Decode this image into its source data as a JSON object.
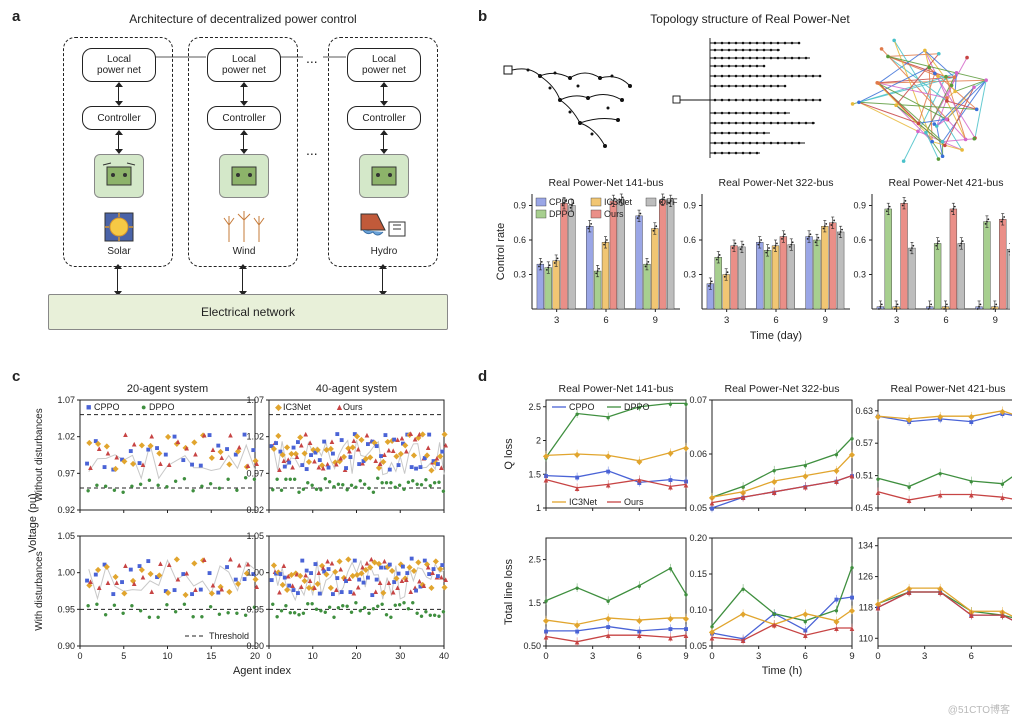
{
  "labels": {
    "a": "a",
    "b": "b",
    "c": "c",
    "d": "d"
  },
  "a": {
    "title": "Architecture of decentralized power control",
    "local_power_net": "Local\npower net",
    "controller": "Controller",
    "solar": "Solar",
    "wind": "Wind",
    "hydro": "Hydro",
    "elec": "Electrical network",
    "dots": "..."
  },
  "colors": {
    "CPPO": "#9aa6e6",
    "DPPO": "#a7cf8f",
    "IC3Net": "#f1c673",
    "Ours": "#ea8f88",
    "OPF": "#bdbdbd",
    "CPPO_line": "#4a63d6",
    "DPPO_line": "#3f8f3f",
    "IC3Net_line": "#e1a52e",
    "Ours_line": "#c74444",
    "bg": "#ffffff",
    "axis": "#222222",
    "grid": "#cccccc"
  },
  "b": {
    "title": "Topology structure of Real Power-Net",
    "subtitles": [
      "Real Power-Net 141-bus",
      "Real Power-Net 322-bus",
      "Real Power-Net 421-bus"
    ],
    "ylabel": "Control rate",
    "xlabel": "Time (day)",
    "yticks": [
      0.3,
      0.6,
      0.9
    ],
    "ylim": [
      0.0,
      1.0
    ],
    "xticks": [
      3,
      6,
      9
    ],
    "legend": [
      "CPPO",
      "DPPO",
      "IC3Net",
      "Ours",
      "OPF"
    ],
    "data_141": {
      "3": {
        "CPPO": 0.39,
        "DPPO": 0.36,
        "IC3Net": 0.42,
        "Ours": 0.92,
        "OPF": 0.9
      },
      "6": {
        "CPPO": 0.72,
        "DPPO": 0.33,
        "IC3Net": 0.58,
        "Ours": 0.94,
        "OPF": 0.95
      },
      "9": {
        "CPPO": 0.81,
        "DPPO": 0.39,
        "IC3Net": 0.7,
        "Ours": 0.95,
        "OPF": 0.94
      }
    },
    "data_322": {
      "3": {
        "CPPO": 0.22,
        "DPPO": 0.45,
        "IC3Net": 0.3,
        "Ours": 0.55,
        "OPF": 0.54
      },
      "6": {
        "CPPO": 0.58,
        "DPPO": 0.51,
        "IC3Net": 0.55,
        "Ours": 0.63,
        "OPF": 0.56
      },
      "9": {
        "CPPO": 0.63,
        "DPPO": 0.6,
        "IC3Net": 0.72,
        "Ours": 0.75,
        "OPF": 0.67
      }
    },
    "data_421": {
      "3": {
        "CPPO": 0.02,
        "DPPO": 0.87,
        "IC3Net": 0.02,
        "Ours": 0.92,
        "OPF": 0.53
      },
      "6": {
        "CPPO": 0.02,
        "DPPO": 0.57,
        "IC3Net": 0.02,
        "Ours": 0.87,
        "OPF": 0.57
      },
      "9": {
        "CPPO": 0.02,
        "DPPO": 0.76,
        "IC3Net": 0.02,
        "Ours": 0.78,
        "OPF": 0.52
      }
    },
    "err": 0.05
  },
  "c": {
    "titles": [
      "20-agent system",
      "40-agent system"
    ],
    "ylabel": "Voltage (pu)",
    "xlabel": "Agent index",
    "row_labels": [
      "Without disturbances",
      "With disturbances"
    ],
    "legend": [
      "CPPO",
      "DPPO",
      "IC3Net",
      "Ours"
    ],
    "threshold_label": "Threshold",
    "top": {
      "ylim": [
        0.92,
        1.07
      ],
      "yticks": [
        0.92,
        0.97,
        1.02,
        1.07
      ],
      "thresh": [
        0.95,
        1.05
      ]
    },
    "bot": {
      "ylim": [
        0.9,
        1.05
      ],
      "yticks": [
        0.9,
        0.95,
        1.0,
        1.05
      ],
      "thresh": [
        0.95,
        1.05
      ]
    },
    "xmax": [
      20,
      40
    ]
  },
  "d": {
    "titles": [
      "Real Power-Net 141-bus",
      "Real Power-Net 322-bus",
      "Real Power-Net 421-bus"
    ],
    "xlabel": "Time (h)",
    "ylabels": [
      "Q loss",
      "Total line loss"
    ],
    "xticks": [
      0,
      3,
      6,
      9
    ],
    "legend": [
      "CPPO",
      "DPPO",
      "IC3Net",
      "Ours"
    ],
    "q141": {
      "ylim": [
        1.0,
        2.6
      ],
      "yticks": [
        1.0,
        1.5,
        2.0,
        2.5
      ],
      "CPPO": [
        [
          0,
          1.48
        ],
        [
          2,
          1.46
        ],
        [
          4,
          1.55
        ],
        [
          6,
          1.38
        ],
        [
          8,
          1.42
        ],
        [
          9,
          1.4
        ]
      ],
      "DPPO": [
        [
          0,
          1.75
        ],
        [
          2,
          2.4
        ],
        [
          4,
          2.35
        ],
        [
          6,
          2.5
        ],
        [
          8,
          2.55
        ],
        [
          9,
          2.55
        ]
      ],
      "IC3Net": [
        [
          0,
          1.78
        ],
        [
          2,
          1.8
        ],
        [
          4,
          1.78
        ],
        [
          6,
          1.7
        ],
        [
          8,
          1.82
        ],
        [
          9,
          1.9
        ]
      ],
      "Ours": [
        [
          0,
          1.42
        ],
        [
          2,
          1.3
        ],
        [
          4,
          1.35
        ],
        [
          6,
          1.42
        ],
        [
          8,
          1.32
        ],
        [
          9,
          1.35
        ]
      ]
    },
    "q322": {
      "ylim": [
        0.05,
        0.07
      ],
      "yticks": [
        0.05,
        0.06,
        0.07
      ],
      "CPPO": [
        [
          0,
          0.05
        ],
        [
          2,
          0.052
        ],
        [
          4,
          0.053
        ],
        [
          6,
          0.054
        ],
        [
          8,
          0.055
        ],
        [
          9,
          0.056
        ]
      ],
      "DPPO": [
        [
          0,
          0.052
        ],
        [
          2,
          0.054
        ],
        [
          4,
          0.057
        ],
        [
          6,
          0.058
        ],
        [
          8,
          0.06
        ],
        [
          9,
          0.063
        ]
      ],
      "IC3Net": [
        [
          0,
          0.052
        ],
        [
          2,
          0.053
        ],
        [
          4,
          0.055
        ],
        [
          6,
          0.056
        ],
        [
          8,
          0.057
        ],
        [
          9,
          0.06
        ]
      ],
      "Ours": [
        [
          0,
          0.051
        ],
        [
          2,
          0.052
        ],
        [
          4,
          0.053
        ],
        [
          6,
          0.054
        ],
        [
          8,
          0.055
        ],
        [
          9,
          0.056
        ]
      ]
    },
    "q421": {
      "ylim": [
        0.45,
        0.65
      ],
      "yticks": [
        0.45,
        0.51,
        0.57,
        0.63
      ],
      "CPPO": [
        [
          0,
          0.62
        ],
        [
          2,
          0.61
        ],
        [
          4,
          0.615
        ],
        [
          6,
          0.61
        ],
        [
          8,
          0.625
        ],
        [
          9,
          0.62
        ]
      ],
      "DPPO": [
        [
          0,
          0.505
        ],
        [
          2,
          0.49
        ],
        [
          4,
          0.515
        ],
        [
          6,
          0.5
        ],
        [
          8,
          0.495
        ],
        [
          9,
          0.515
        ]
      ],
      "IC3Net": [
        [
          0,
          0.62
        ],
        [
          2,
          0.615
        ],
        [
          4,
          0.62
        ],
        [
          6,
          0.62
        ],
        [
          8,
          0.63
        ],
        [
          9,
          0.62
        ]
      ],
      "Ours": [
        [
          0,
          0.48
        ],
        [
          2,
          0.465
        ],
        [
          4,
          0.475
        ],
        [
          6,
          0.475
        ],
        [
          8,
          0.47
        ],
        [
          9,
          0.465
        ]
      ]
    },
    "t141": {
      "ylim": [
        0.5,
        3.0
      ],
      "yticks": [
        0.5,
        1.5,
        2.5
      ],
      "CPPO": [
        [
          0,
          0.85
        ],
        [
          2,
          0.85
        ],
        [
          4,
          0.95
        ],
        [
          6,
          0.85
        ],
        [
          8,
          0.9
        ],
        [
          9,
          0.9
        ]
      ],
      "DPPO": [
        [
          0,
          1.55
        ],
        [
          2,
          1.85
        ],
        [
          4,
          1.55
        ],
        [
          6,
          1.9
        ],
        [
          8,
          2.3
        ],
        [
          9,
          1.7
        ]
      ],
      "IC3Net": [
        [
          0,
          1.1
        ],
        [
          2,
          1.0
        ],
        [
          4,
          1.15
        ],
        [
          6,
          1.1
        ],
        [
          8,
          1.15
        ],
        [
          9,
          1.15
        ]
      ],
      "Ours": [
        [
          0,
          0.72
        ],
        [
          2,
          0.6
        ],
        [
          4,
          0.75
        ],
        [
          6,
          0.75
        ],
        [
          8,
          0.7
        ],
        [
          9,
          0.75
        ]
      ]
    },
    "t322": {
      "ylim": [
        0.05,
        0.2
      ],
      "yticks": [
        0.05,
        0.1,
        0.15,
        0.2
      ],
      "CPPO": [
        [
          0,
          0.068
        ],
        [
          2,
          0.06
        ],
        [
          4,
          0.095
        ],
        [
          6,
          0.072
        ],
        [
          8,
          0.115
        ],
        [
          9,
          0.118
        ]
      ],
      "DPPO": [
        [
          0,
          0.078
        ],
        [
          2,
          0.13
        ],
        [
          4,
          0.095
        ],
        [
          6,
          0.085
        ],
        [
          8,
          0.1
        ],
        [
          9,
          0.16
        ]
      ],
      "IC3Net": [
        [
          0,
          0.07
        ],
        [
          2,
          0.095
        ],
        [
          4,
          0.08
        ],
        [
          6,
          0.095
        ],
        [
          8,
          0.085
        ],
        [
          9,
          0.1
        ]
      ],
      "Ours": [
        [
          0,
          0.062
        ],
        [
          2,
          0.058
        ],
        [
          4,
          0.08
        ],
        [
          6,
          0.065
        ],
        [
          8,
          0.075
        ],
        [
          9,
          0.075
        ]
      ]
    },
    "t421": {
      "ylim": [
        108,
        136
      ],
      "yticks": [
        110,
        118,
        126,
        134
      ],
      "CPPO": [
        [
          0,
          118
        ],
        [
          2,
          122
        ],
        [
          4,
          122
        ],
        [
          6,
          116
        ],
        [
          8,
          116
        ],
        [
          9,
          114
        ]
      ],
      "DPPO": [
        [
          0,
          119
        ],
        [
          2,
          122
        ],
        [
          4,
          122
        ],
        [
          6,
          117
        ],
        [
          8,
          116
        ],
        [
          9,
          115
        ]
      ],
      "IC3Net": [
        [
          0,
          119
        ],
        [
          2,
          123
        ],
        [
          4,
          123
        ],
        [
          6,
          117
        ],
        [
          8,
          117
        ],
        [
          9,
          115
        ]
      ],
      "Ours": [
        [
          0,
          118
        ],
        [
          2,
          122
        ],
        [
          4,
          122
        ],
        [
          6,
          116
        ],
        [
          8,
          116
        ],
        [
          9,
          114
        ]
      ]
    },
    "err": 0.03
  },
  "watermark": "@51CTO博客"
}
